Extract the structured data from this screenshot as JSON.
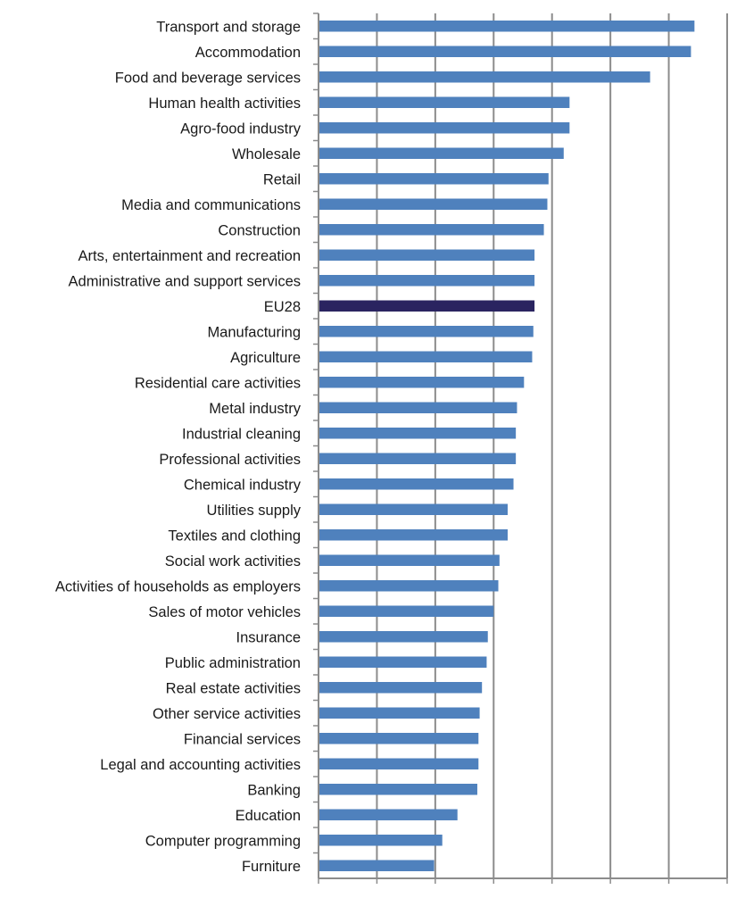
{
  "chart_data": {
    "type": "bar",
    "orientation": "horizontal",
    "categories": [
      "Transport and storage",
      "Accommodation",
      "Food and beverage services",
      "Human health activities",
      "Agro-food industry",
      "Wholesale",
      "Retail",
      "Media and communications",
      "Construction",
      "Arts, entertainment and recreation",
      "Administrative and support services",
      "EU28",
      "Manufacturing",
      "Agriculture",
      "Residential care activities",
      "Metal industry",
      "Industrial cleaning",
      "Professional activities",
      "Chemical industry",
      "Utilities supply",
      "Textiles and clothing",
      "Social work activities",
      "Activities of households as employers",
      "Sales of motor vehicles",
      "Insurance",
      "Public administration",
      "Real estate activities",
      "Other service activities",
      "Financial services",
      "Legal and accounting activities",
      "Banking",
      "Education",
      "Computer programming",
      "Furniture"
    ],
    "values": [
      32.2,
      31.9,
      28.4,
      21.5,
      21.5,
      21.0,
      19.7,
      19.6,
      19.3,
      18.5,
      18.5,
      18.5,
      18.4,
      18.3,
      17.6,
      17.0,
      16.9,
      16.9,
      16.7,
      16.2,
      16.2,
      15.5,
      15.4,
      15.0,
      14.5,
      14.4,
      14.0,
      13.8,
      13.7,
      13.7,
      13.6,
      11.9,
      10.6,
      9.9
    ],
    "highlight_category": "EU28",
    "xlim": [
      0,
      35
    ],
    "xticks": [
      "0%",
      "5%",
      "10%",
      "15%",
      "20%",
      "25%",
      "30%",
      "35%"
    ],
    "xtick_values": [
      0,
      5,
      10,
      15,
      20,
      25,
      30,
      35
    ],
    "grid": "vertical",
    "title": "",
    "xlabel": "",
    "ylabel": "",
    "colors": {
      "bar": "#4f81bd",
      "highlight": "#2a2460",
      "grid": "#8c8c8c",
      "axis": "#8c8c8c"
    }
  }
}
